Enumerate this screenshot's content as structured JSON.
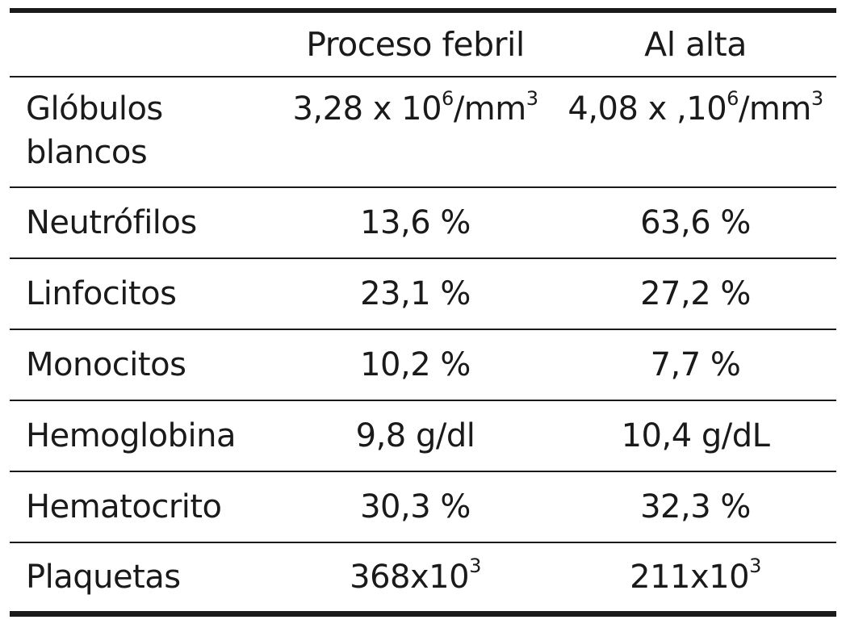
{
  "header": {
    "col0": "",
    "col1": "Proceso febril",
    "col2": "Al alta"
  },
  "rows": [
    {
      "label_line1": "Glóbulos",
      "label_line2": "blancos",
      "v1_base": "3,28 x 10",
      "v1_sup": "6",
      "v1_after": "/mm",
      "v1_sup2": "3",
      "v2_base": "4,08 x ,10",
      "v2_sup": "6",
      "v2_after": "/mm",
      "v2_sup2": "3"
    },
    {
      "label": "Neutrófilos",
      "v1": "13,6 %",
      "v2": "63,6 %"
    },
    {
      "label": "Linfocitos",
      "v1": "23,1 %",
      "v2": "27,2 %"
    },
    {
      "label": "Monocitos",
      "v1": "10,2 %",
      "v2": "7,7 %"
    },
    {
      "label": "Hemoglobina",
      "v1": "9,8 g/dl",
      "v2": "10,4 g/dL"
    },
    {
      "label": "Hematocrito",
      "v1": "30,3 %",
      "v2": "32,3 %"
    },
    {
      "label": "Plaquetas",
      "v1_base": "368x10",
      "v1_sup": "3",
      "v2_base": "211x10",
      "v2_sup": "3"
    }
  ]
}
